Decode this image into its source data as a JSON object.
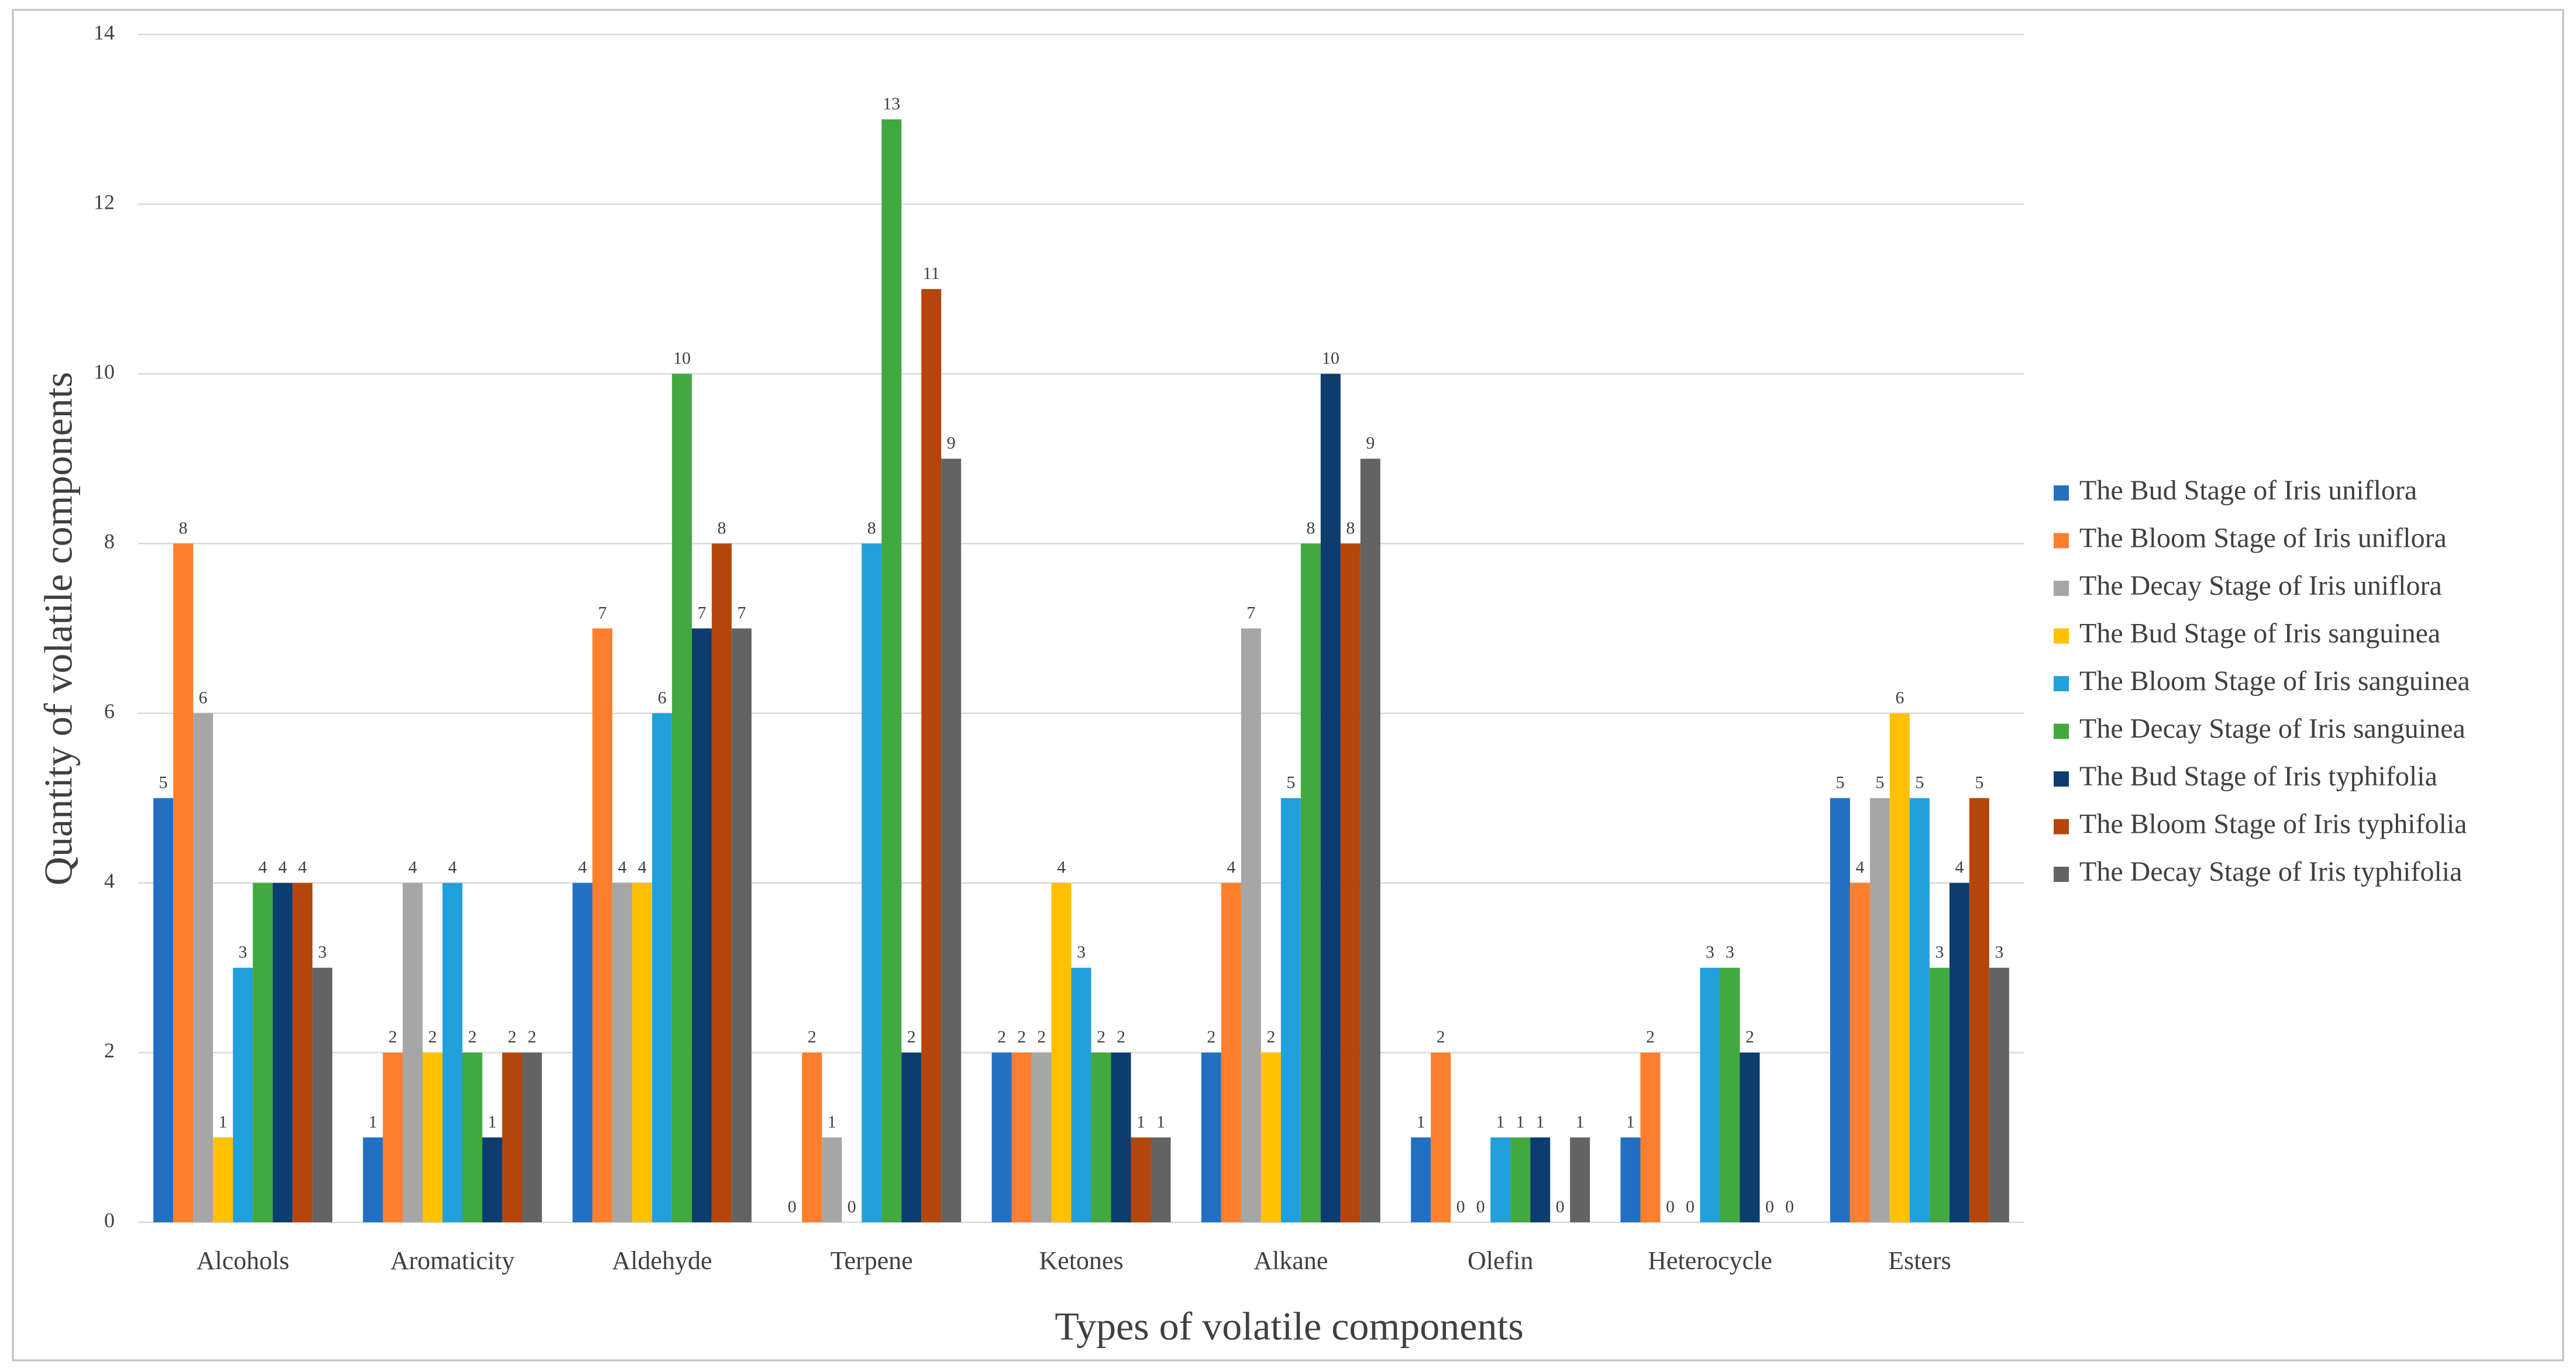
{
  "chart_data": {
    "type": "bar",
    "x_label": "Types of volatile components",
    "y_label": "Quantity of volatile components",
    "categories": [
      "Alcohols",
      "Aromaticity",
      "Aldehyde",
      "Terpene",
      "Ketones",
      "Alkane",
      "Olefin",
      "Heterocycle",
      "Esters"
    ],
    "series": [
      {
        "name": "The Bud Stage of Iris uniflora",
        "color": "#2170c4",
        "values": [
          5,
          1,
          4,
          0,
          2,
          2,
          1,
          1,
          5
        ]
      },
      {
        "name": "The Bloom Stage of Iris uniflora",
        "color": "#fd7f2d",
        "values": [
          8,
          2,
          7,
          2,
          2,
          4,
          2,
          2,
          4
        ]
      },
      {
        "name": "The Decay Stage of Iris uniflora",
        "color": "#a6a6a6",
        "values": [
          6,
          4,
          4,
          1,
          2,
          7,
          0,
          0,
          5
        ]
      },
      {
        "name": "The Bud Stage of Iris sanguinea",
        "color": "#ffc000",
        "values": [
          1,
          2,
          4,
          0,
          4,
          2,
          0,
          0,
          6
        ]
      },
      {
        "name": "The Bloom Stage of Iris sanguinea",
        "color": "#21a0dc",
        "values": [
          3,
          4,
          6,
          8,
          3,
          5,
          1,
          3,
          5
        ]
      },
      {
        "name": "The Decay Stage of Iris sanguinea",
        "color": "#41a93f",
        "values": [
          4,
          2,
          10,
          13,
          2,
          8,
          1,
          3,
          3
        ]
      },
      {
        "name": "The Bud Stage of Iris typhifolia",
        "color": "#0d3d6f",
        "values": [
          4,
          1,
          7,
          2,
          2,
          10,
          1,
          2,
          4
        ]
      },
      {
        "name": "The Bloom Stage of Iris typhifolia",
        "color": "#b4460c",
        "values": [
          4,
          2,
          8,
          11,
          1,
          8,
          0,
          0,
          5
        ]
      },
      {
        "name": "The Decay Stage of Iris typhifolia",
        "color": "#636363",
        "values": [
          3,
          2,
          7,
          9,
          1,
          9,
          1,
          0,
          3
        ]
      }
    ],
    "ylim": [
      0,
      14
    ],
    "yticks": [
      0,
      2,
      4,
      6,
      8,
      10,
      12,
      14
    ],
    "grid": true,
    "legend": "right"
  }
}
